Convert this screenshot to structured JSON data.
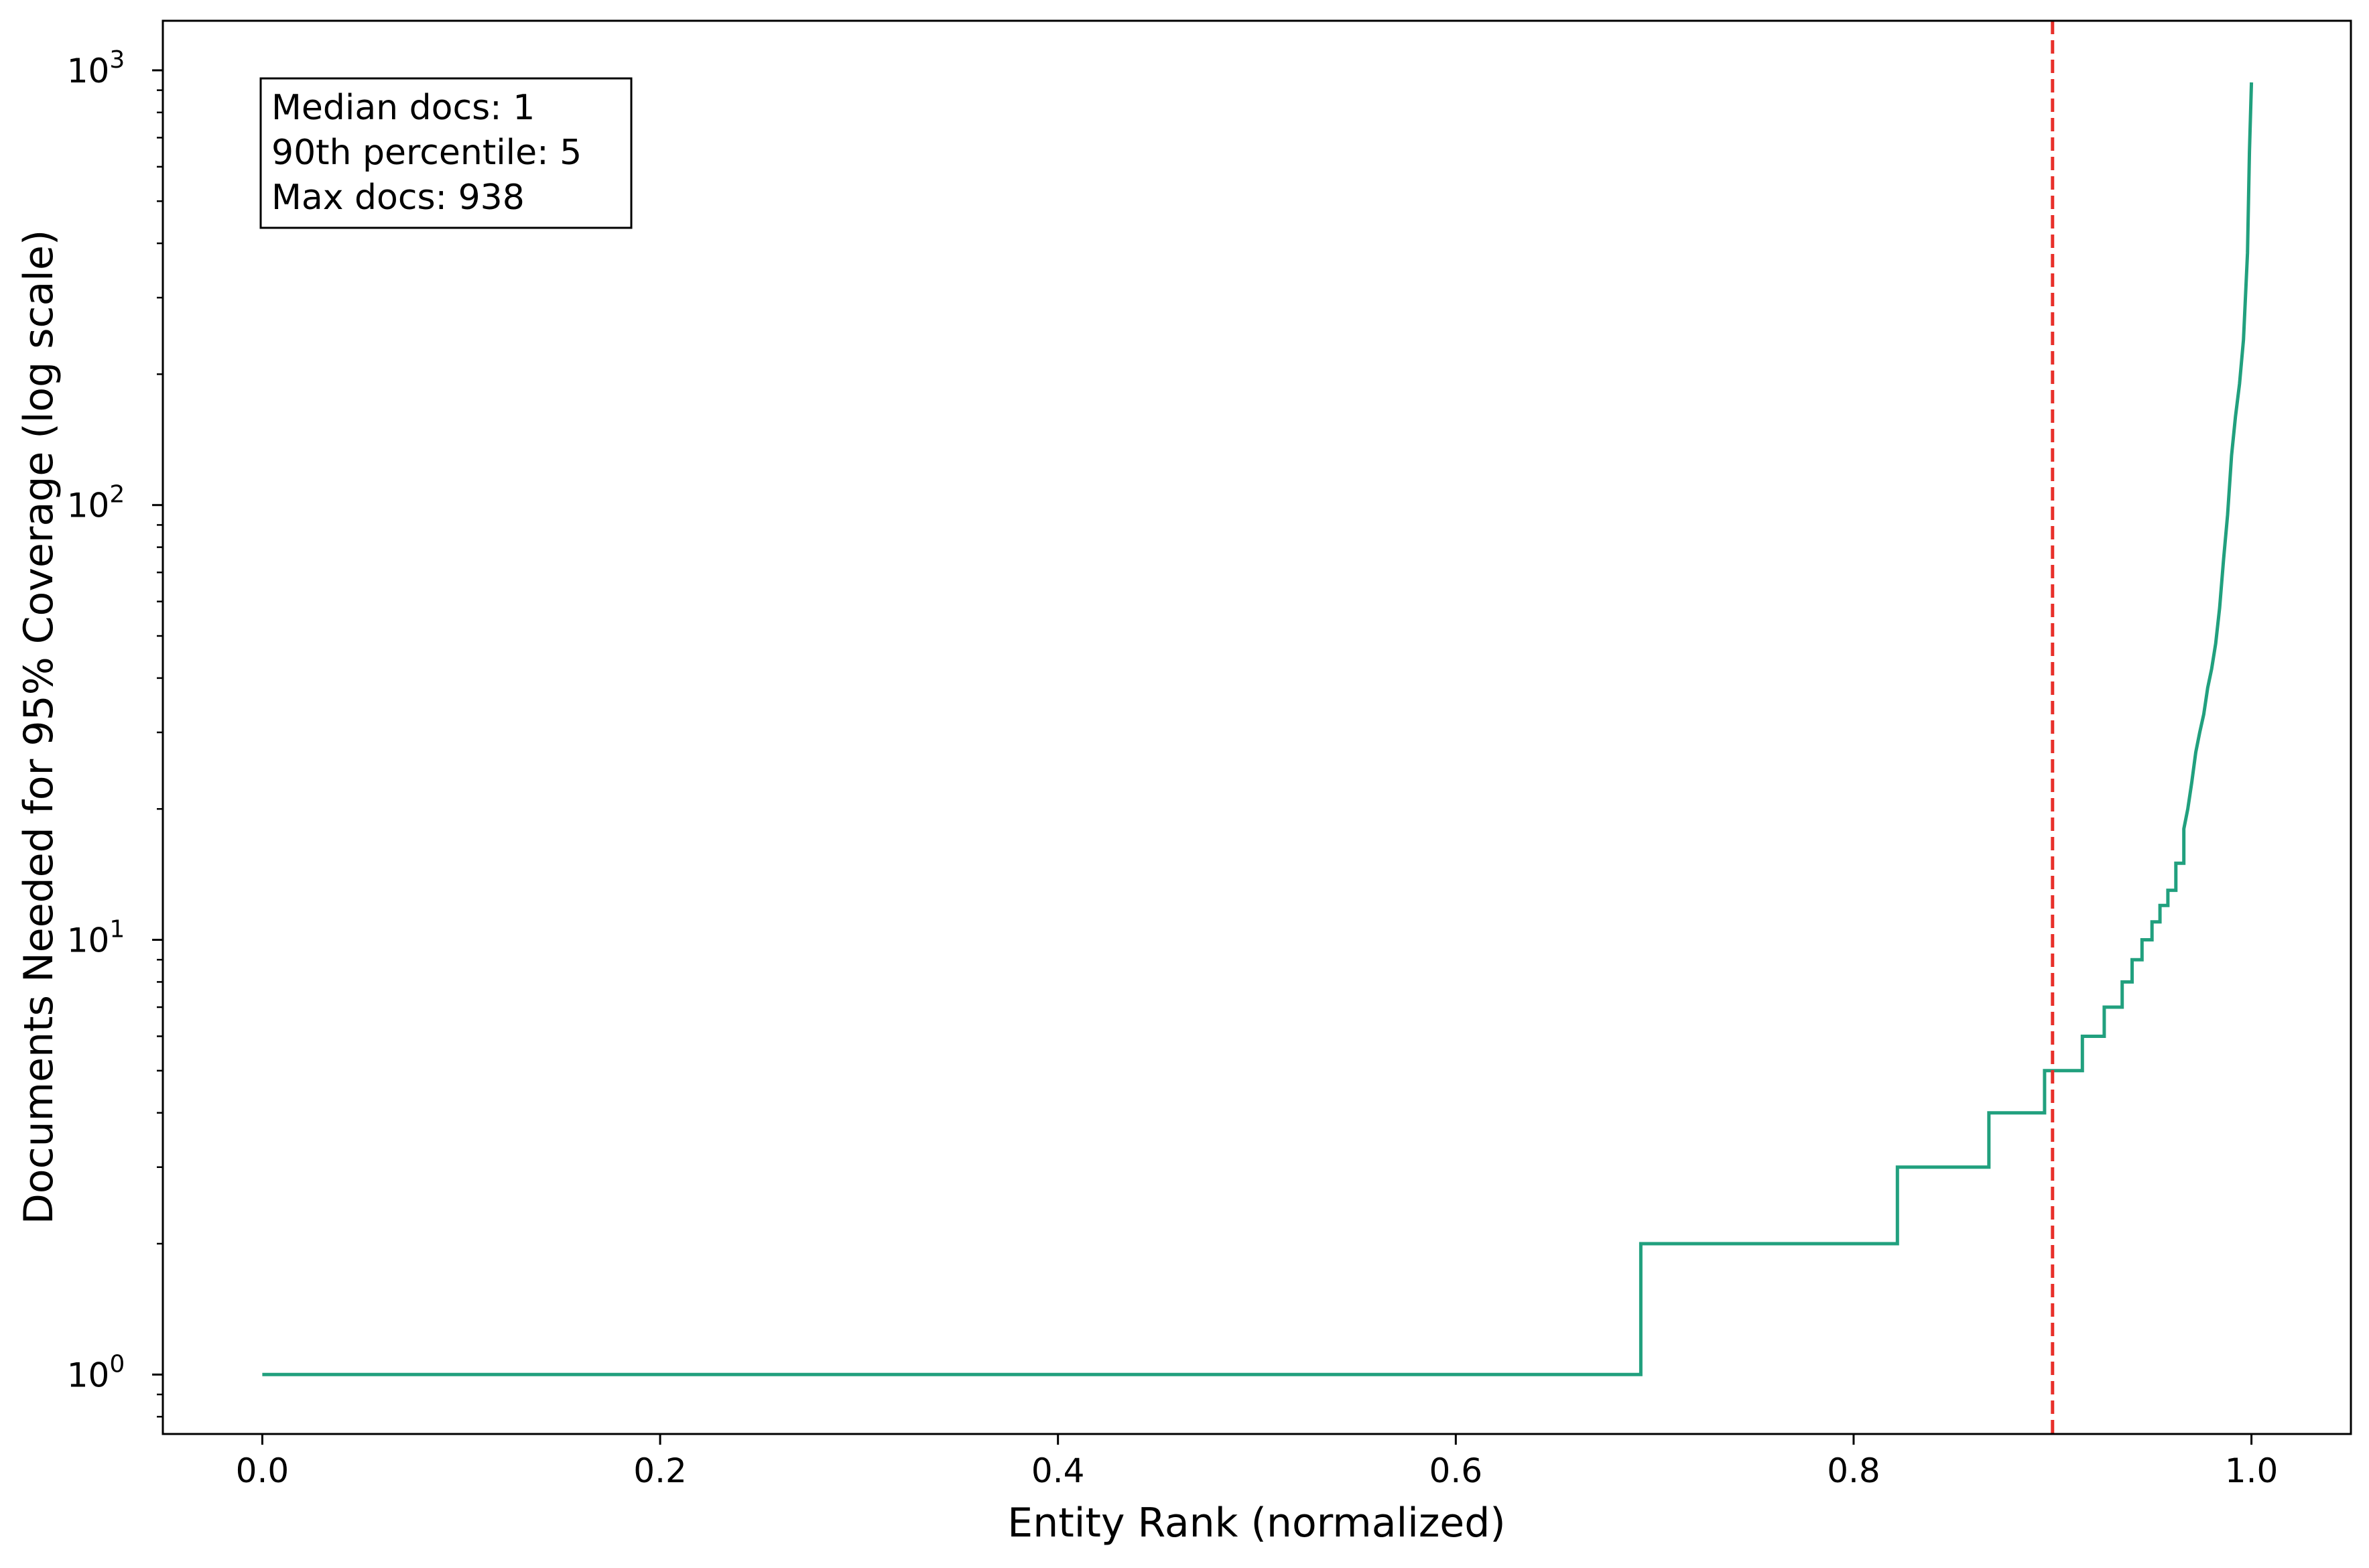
{
  "chart_data": {
    "type": "line",
    "xlabel": "Entity Rank (normalized)",
    "ylabel": "Documents Needed for 95% Coverage (log scale)",
    "xlim": [
      -0.05,
      1.05
    ],
    "ylim": [
      0.73,
      1300
    ],
    "yscale": "log",
    "grid": false,
    "x_ticks": [
      {
        "value": 0.0,
        "label": "0.0"
      },
      {
        "value": 0.2,
        "label": "0.2"
      },
      {
        "value": 0.4,
        "label": "0.4"
      },
      {
        "value": 0.6,
        "label": "0.6"
      },
      {
        "value": 0.8,
        "label": "0.8"
      },
      {
        "value": 1.0,
        "label": "1.0"
      }
    ],
    "y_ticks": [
      {
        "value": 1,
        "base": "10",
        "exp": "0"
      },
      {
        "value": 10,
        "base": "10",
        "exp": "1"
      },
      {
        "value": 100,
        "base": "10",
        "exp": "2"
      },
      {
        "value": 1000,
        "base": "10",
        "exp": "3"
      }
    ],
    "series": [
      {
        "color": "#21a07e",
        "x": [
          0.0,
          0.693,
          0.693,
          0.822,
          0.822,
          0.868,
          0.868,
          0.896,
          0.896,
          0.915,
          0.915,
          0.926,
          0.926,
          0.935,
          0.935,
          0.94,
          0.94,
          0.945,
          0.945,
          0.95,
          0.95,
          0.954,
          0.954,
          0.958,
          0.958,
          0.962,
          0.962,
          0.966,
          0.966,
          0.968,
          0.97,
          0.972,
          0.974,
          0.976,
          0.978,
          0.98,
          0.982,
          0.984,
          0.986,
          0.988,
          0.99,
          0.992,
          0.994,
          0.996,
          0.998,
          0.999,
          1.0
        ],
        "y": [
          1,
          1,
          2,
          2,
          3,
          3,
          4,
          4,
          5,
          5,
          6,
          6,
          7,
          7,
          8,
          8,
          9,
          9,
          10,
          10,
          11,
          11,
          12,
          12,
          13,
          13,
          15,
          15,
          18,
          20,
          23,
          27,
          30,
          33,
          38,
          42,
          48,
          58,
          75,
          95,
          130,
          160,
          190,
          240,
          380,
          650,
          938
        ]
      }
    ],
    "reference_lines": [
      {
        "orientation": "vertical",
        "x": 0.9,
        "color": "#e8302a",
        "style": "dashed"
      }
    ],
    "annotation": {
      "lines": [
        "Median docs: 1",
        "90th percentile: 5",
        "Max docs: 938"
      ]
    }
  }
}
